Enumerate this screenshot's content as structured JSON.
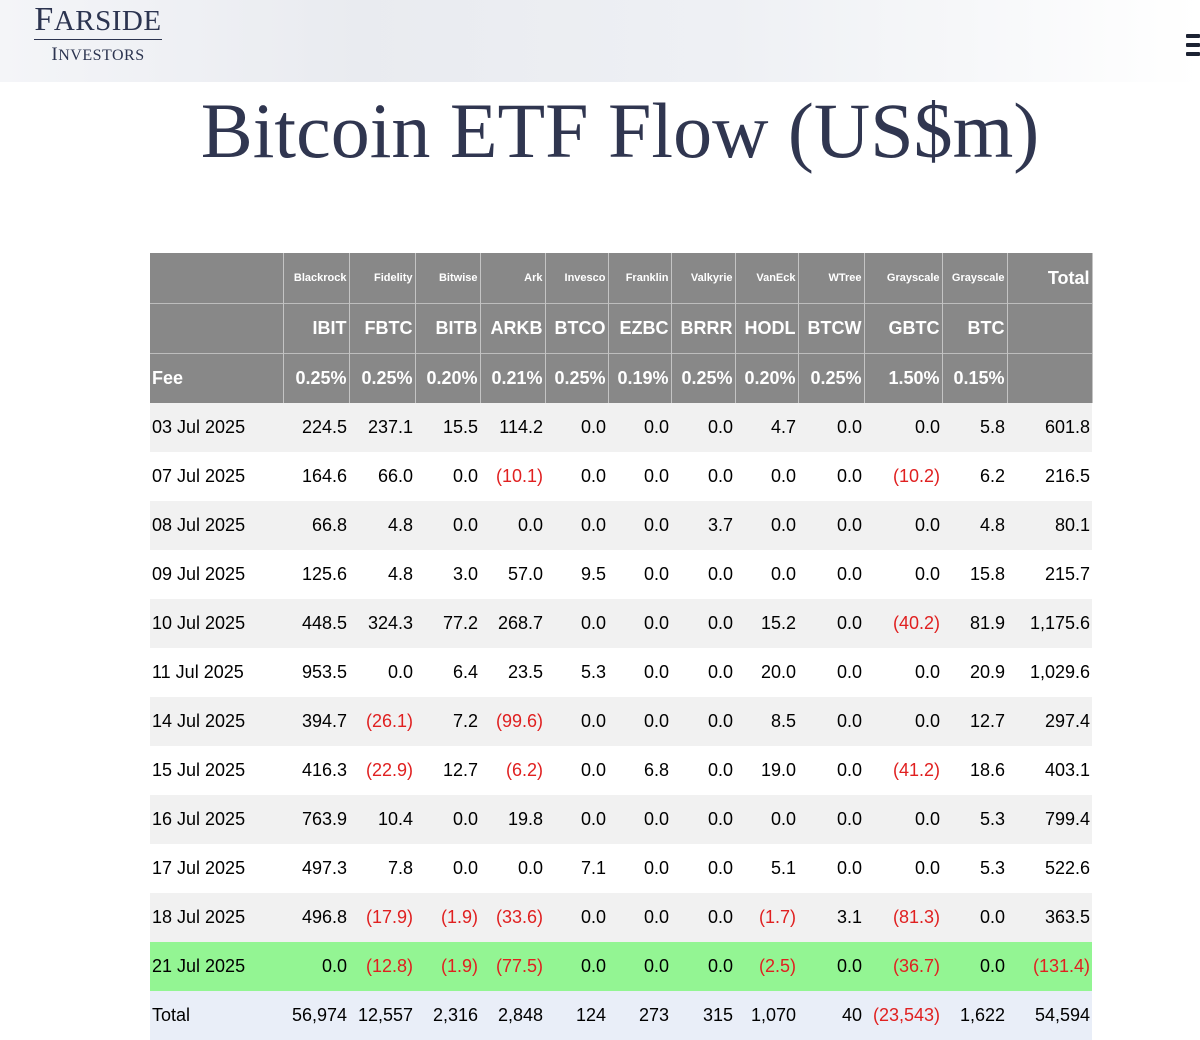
{
  "logo": {
    "first_letter": "F",
    "rest": "ARSIDE",
    "sub_first": "I",
    "sub_rest": "NVESTORS"
  },
  "page_title": "Bitcoin ETF Flow (US$m)",
  "table": {
    "issuers": [
      "Blackrock",
      "Fidelity",
      "Bitwise",
      "Ark",
      "Invesco",
      "Franklin",
      "Valkyrie",
      "VanEck",
      "WTree",
      "Grayscale",
      "Grayscale"
    ],
    "tickers": [
      "IBIT",
      "FBTC",
      "BITB",
      "ARKB",
      "BTCO",
      "EZBC",
      "BRRR",
      "HODL",
      "BTCW",
      "GBTC",
      "BTC"
    ],
    "fee_label": "Fee",
    "fees": [
      "0.25%",
      "0.25%",
      "0.20%",
      "0.21%",
      "0.25%",
      "0.19%",
      "0.25%",
      "0.20%",
      "0.25%",
      "1.50%",
      "0.15%"
    ],
    "total_label": "Total",
    "rows": [
      {
        "date": "03 Jul 2025",
        "values": [
          "224.5",
          "237.1",
          "15.5",
          "114.2",
          "0.0",
          "0.0",
          "0.0",
          "4.7",
          "0.0",
          "0.0",
          "5.8",
          "601.8"
        ]
      },
      {
        "date": "07 Jul 2025",
        "values": [
          "164.6",
          "66.0",
          "0.0",
          "(10.1)",
          "0.0",
          "0.0",
          "0.0",
          "0.0",
          "0.0",
          "(10.2)",
          "6.2",
          "216.5"
        ]
      },
      {
        "date": "08 Jul 2025",
        "values": [
          "66.8",
          "4.8",
          "0.0",
          "0.0",
          "0.0",
          "0.0",
          "3.7",
          "0.0",
          "0.0",
          "0.0",
          "4.8",
          "80.1"
        ]
      },
      {
        "date": "09 Jul 2025",
        "values": [
          "125.6",
          "4.8",
          "3.0",
          "57.0",
          "9.5",
          "0.0",
          "0.0",
          "0.0",
          "0.0",
          "0.0",
          "15.8",
          "215.7"
        ]
      },
      {
        "date": "10 Jul 2025",
        "values": [
          "448.5",
          "324.3",
          "77.2",
          "268.7",
          "0.0",
          "0.0",
          "0.0",
          "15.2",
          "0.0",
          "(40.2)",
          "81.9",
          "1,175.6"
        ]
      },
      {
        "date": "11 Jul 2025",
        "values": [
          "953.5",
          "0.0",
          "6.4",
          "23.5",
          "5.3",
          "0.0",
          "0.0",
          "20.0",
          "0.0",
          "0.0",
          "20.9",
          "1,029.6"
        ]
      },
      {
        "date": "14 Jul 2025",
        "values": [
          "394.7",
          "(26.1)",
          "7.2",
          "(99.6)",
          "0.0",
          "0.0",
          "0.0",
          "8.5",
          "0.0",
          "0.0",
          "12.7",
          "297.4"
        ]
      },
      {
        "date": "15 Jul 2025",
        "values": [
          "416.3",
          "(22.9)",
          "12.7",
          "(6.2)",
          "0.0",
          "6.8",
          "0.0",
          "19.0",
          "0.0",
          "(41.2)",
          "18.6",
          "403.1"
        ]
      },
      {
        "date": "16 Jul 2025",
        "values": [
          "763.9",
          "10.4",
          "0.0",
          "19.8",
          "0.0",
          "0.0",
          "0.0",
          "0.0",
          "0.0",
          "0.0",
          "5.3",
          "799.4"
        ]
      },
      {
        "date": "17 Jul 2025",
        "values": [
          "497.3",
          "7.8",
          "0.0",
          "0.0",
          "7.1",
          "0.0",
          "0.0",
          "5.1",
          "0.0",
          "0.0",
          "5.3",
          "522.6"
        ]
      },
      {
        "date": "18 Jul 2025",
        "values": [
          "496.8",
          "(17.9)",
          "(1.9)",
          "(33.6)",
          "0.0",
          "0.0",
          "0.0",
          "(1.7)",
          "3.1",
          "(81.3)",
          "0.0",
          "363.5"
        ]
      },
      {
        "date": "21 Jul 2025",
        "values": [
          "0.0",
          "(12.8)",
          "(1.9)",
          "(77.5)",
          "0.0",
          "0.0",
          "0.0",
          "(2.5)",
          "0.0",
          "(36.7)",
          "0.0",
          "(131.4)"
        ],
        "highlight": true
      }
    ],
    "totals": {
      "label": "Total",
      "values": [
        "56,974",
        "12,557",
        "2,316",
        "2,848",
        "124",
        "273",
        "315",
        "1,070",
        "40",
        "(23,543)",
        "1,622",
        "54,594"
      ]
    }
  },
  "colors": {
    "header_bg": "#888888",
    "negative": "#e02020",
    "highlight": "#93f593",
    "title": "#303650"
  }
}
